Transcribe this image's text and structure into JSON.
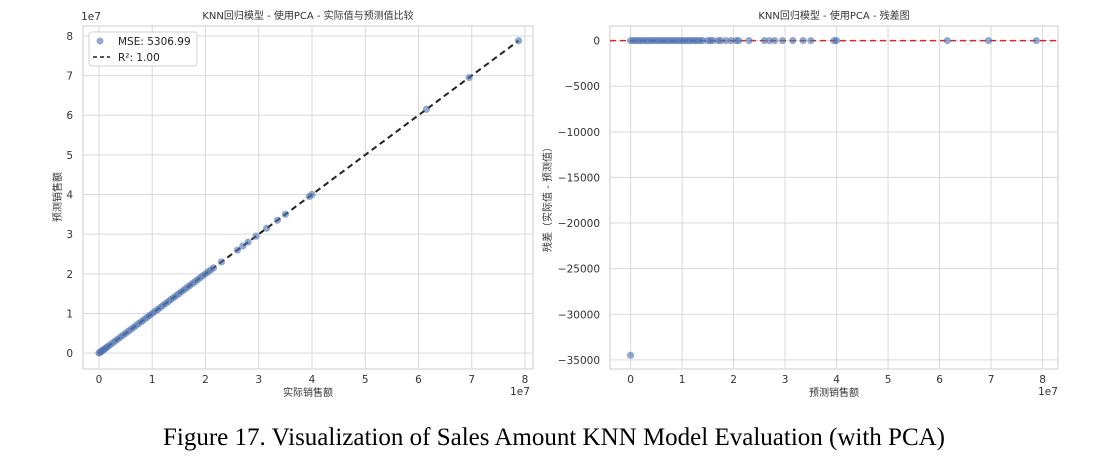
{
  "figure_caption": "Figure 17. Visualization of Sales Amount KNN Model Evaluation (with PCA)",
  "chart_data": [
    {
      "type": "scatter",
      "title": "KNN回归模型 - 使用PCA - 实际值与预测值比较",
      "xlabel": "实际销售额",
      "ylabel": "预测销售额",
      "x_exponent": "1e7",
      "y_exponent": "1e7",
      "xlim": [
        -0.3,
        8.15
      ],
      "ylim": [
        -0.4,
        8.25
      ],
      "x_ticks": [
        "0",
        "1",
        "2",
        "3",
        "4",
        "5",
        "6",
        "7",
        "8"
      ],
      "y_ticks": [
        "0",
        "1",
        "2",
        "3",
        "4",
        "5",
        "6",
        "7",
        "8"
      ],
      "grid": true,
      "legend_position": "top-left",
      "legend": [
        "MSE: 5306.99",
        "R²: 1.00"
      ],
      "point_color": "#4c72b0",
      "line_color": "#222222",
      "points_x": [
        0.0,
        0.02,
        0.04,
        0.06,
        0.08,
        0.1,
        0.13,
        0.16,
        0.2,
        0.25,
        0.3,
        0.35,
        0.4,
        0.45,
        0.5,
        0.55,
        0.6,
        0.65,
        0.7,
        0.75,
        0.8,
        0.85,
        0.9,
        0.95,
        1.0,
        1.05,
        1.1,
        1.15,
        1.2,
        1.25,
        1.3,
        1.35,
        1.4,
        1.45,
        1.5,
        1.55,
        1.6,
        1.65,
        1.7,
        1.75,
        1.8,
        1.85,
        1.9,
        1.95,
        2.0,
        2.05,
        2.1,
        2.15,
        2.3,
        2.6,
        2.7,
        2.8,
        2.95,
        3.15,
        3.35,
        3.5,
        3.95,
        4.0,
        6.15,
        6.95,
        7.88
      ],
      "identity_line": [
        [
          0,
          0
        ],
        [
          7.88,
          7.88
        ]
      ]
    },
    {
      "type": "scatter",
      "title": "KNN回归模型 - 使用PCA - 残差图",
      "xlabel": "预测销售额",
      "ylabel": "残差（实际值 - 预测值）",
      "x_exponent": "1e7",
      "xlim": [
        -0.4,
        8.3
      ],
      "ylim": [
        -36000,
        1600
      ],
      "x_ticks": [
        "0",
        "1",
        "2",
        "3",
        "4",
        "5",
        "6",
        "7",
        "8"
      ],
      "y_ticks": [
        "0",
        "−5000",
        "−10000",
        "−15000",
        "−20000",
        "−25000",
        "−30000",
        "−35000"
      ],
      "y_tick_values": [
        0,
        -5000,
        -10000,
        -15000,
        -20000,
        -25000,
        -30000,
        -35000
      ],
      "grid": true,
      "point_color": "#4c72b0",
      "zero_line_color": "#d62728",
      "points_x": [
        0.0,
        0.05,
        0.1,
        0.15,
        0.2,
        0.25,
        0.3,
        0.35,
        0.4,
        0.45,
        0.5,
        0.55,
        0.6,
        0.65,
        0.7,
        0.75,
        0.8,
        0.85,
        0.9,
        0.95,
        1.0,
        1.05,
        1.1,
        1.15,
        1.2,
        1.25,
        1.3,
        1.35,
        1.4,
        1.5,
        1.55,
        1.6,
        1.7,
        1.75,
        1.85,
        1.95,
        2.05,
        2.1,
        2.3,
        2.6,
        2.7,
        2.8,
        2.95,
        3.15,
        3.35,
        3.5,
        3.95,
        4.0,
        6.15,
        6.95,
        7.88,
        0.0
      ],
      "points_y": [
        0,
        0,
        0,
        0,
        0,
        0,
        0,
        0,
        0,
        0,
        0,
        0,
        0,
        0,
        0,
        0,
        0,
        0,
        0,
        0,
        0,
        0,
        0,
        0,
        0,
        0,
        0,
        0,
        0,
        0,
        0,
        0,
        0,
        0,
        0,
        0,
        0,
        0,
        0,
        0,
        0,
        0,
        0,
        0,
        0,
        0,
        0,
        0,
        0,
        0,
        0,
        -34500
      ]
    }
  ]
}
